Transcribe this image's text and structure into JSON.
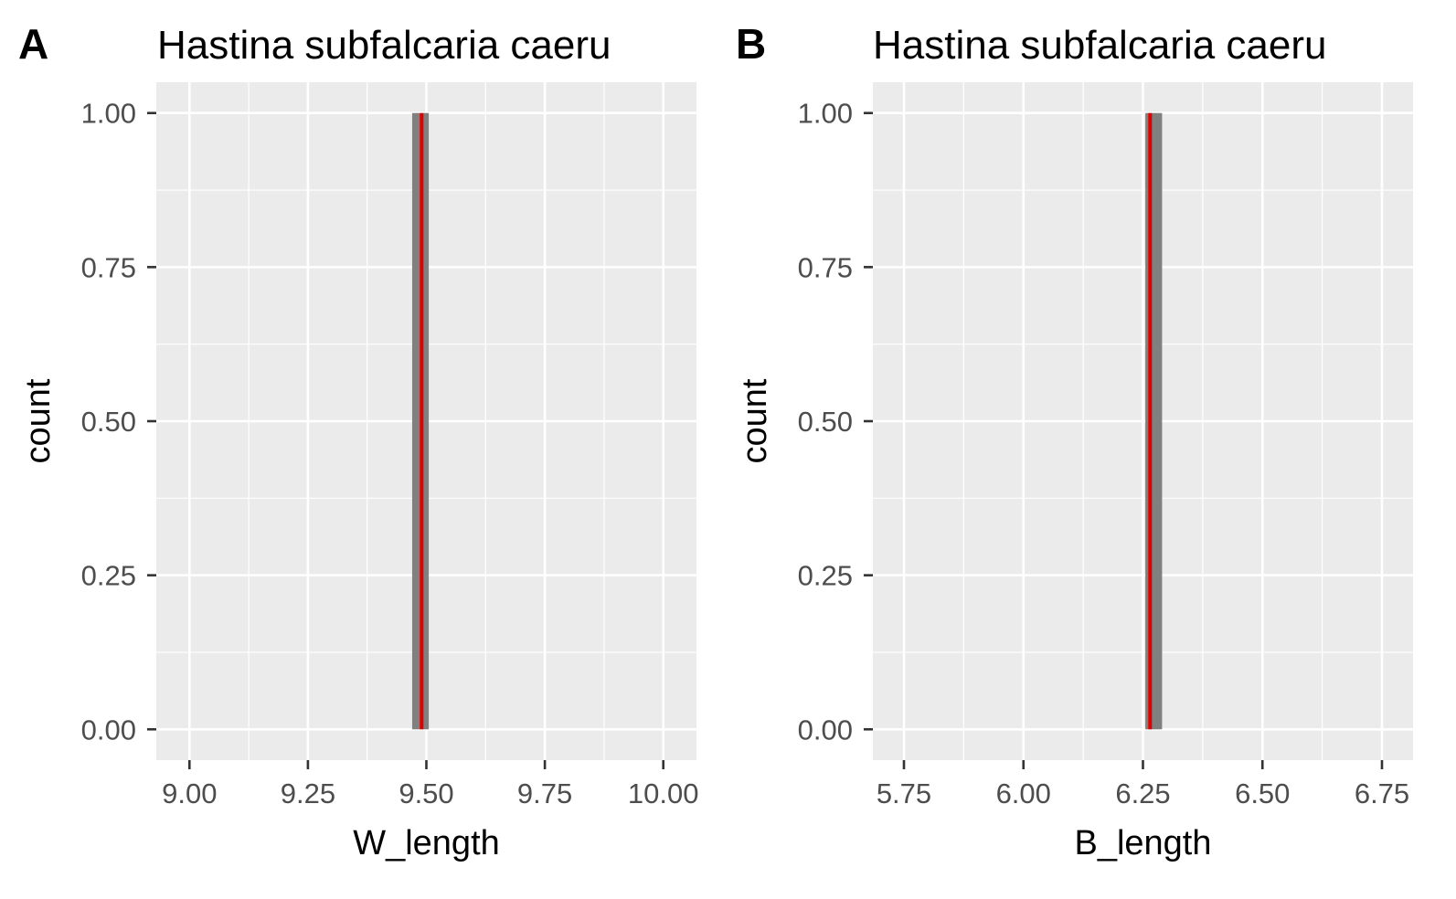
{
  "chart_data": [
    {
      "type": "bar",
      "panel_tag": "A",
      "title": "Hastina subfalcaria caeru",
      "xlabel": "W_length",
      "ylabel": "count",
      "xlim": [
        8.93,
        10.07
      ],
      "ylim": [
        -0.05,
        1.05
      ],
      "x_ticks": [
        9.0,
        9.25,
        9.5,
        9.75,
        10.0
      ],
      "x_tick_labels": [
        "9.00",
        "9.25",
        "9.50",
        "9.75",
        "10.00"
      ],
      "y_ticks": [
        0,
        0.25,
        0.5,
        0.75,
        1.0
      ],
      "y_tick_labels": [
        "0.00",
        "0.25",
        "0.50",
        "0.75",
        "1.00"
      ],
      "bars": [
        {
          "xmin": 9.47,
          "xmax": 9.505,
          "count": 1
        }
      ],
      "vline": 9.49,
      "grid": true,
      "bar_color": "#808080",
      "vline_color": "#e00000",
      "panel_background": "#ebebeb"
    },
    {
      "type": "bar",
      "panel_tag": "B",
      "title": "Hastina subfalcaria caeru",
      "xlabel": "B_length",
      "ylabel": "count",
      "xlim": [
        5.685,
        6.815
      ],
      "ylim": [
        -0.05,
        1.05
      ],
      "x_ticks": [
        5.75,
        6.0,
        6.25,
        6.5,
        6.75
      ],
      "x_tick_labels": [
        "5.75",
        "6.00",
        "6.25",
        "6.50",
        "6.75"
      ],
      "y_ticks": [
        0,
        0.25,
        0.5,
        0.75,
        1.0
      ],
      "y_tick_labels": [
        "0.00",
        "0.25",
        "0.50",
        "0.75",
        "1.00"
      ],
      "bars": [
        {
          "xmin": 6.255,
          "xmax": 6.29,
          "count": 1
        }
      ],
      "vline": 6.265,
      "grid": true,
      "bar_color": "#808080",
      "vline_color": "#e00000",
      "panel_background": "#ebebeb"
    }
  ]
}
